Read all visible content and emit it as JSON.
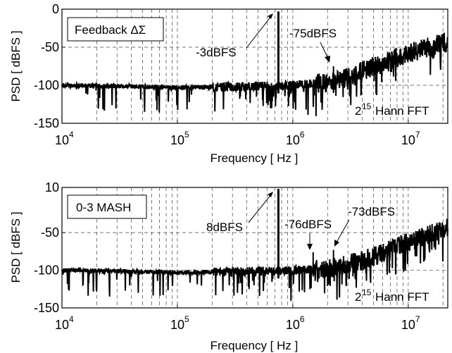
{
  "chart_data": [
    {
      "type": "line",
      "panel": "top",
      "legend": "Feedback ΔΣ",
      "xlabel": "Frequency  [ Hz ]",
      "ylabel": "PSD  [ dBFS ]",
      "x_scale": "log",
      "xlim": [
        10000,
        22000000
      ],
      "ylim": [
        -150,
        0
      ],
      "grid": true,
      "legend_position": "top-left",
      "yticks": [
        0,
        -50,
        -100,
        -150
      ],
      "ytick_labels": [
        "0",
        "-50",
        "-100",
        "-150"
      ],
      "xticks": [
        10000,
        100000,
        1000000,
        10000000
      ],
      "xtick_bases": [
        "10",
        "10",
        "10",
        "10"
      ],
      "xtick_exps": [
        "4",
        "5",
        "6",
        "7"
      ],
      "fft_base": "2",
      "fft_exp": "15",
      "fft_text": "Hann FFT",
      "noise": {
        "x": [
          10000,
          30000,
          100000,
          300000,
          700000,
          1000000,
          2000000,
          3000000,
          5000000,
          10000000,
          22000000
        ],
        "y": [
          -100,
          -101,
          -103,
          -102,
          -101,
          -100,
          -97,
          -90,
          -75,
          -58,
          -42
        ]
      },
      "tones": [
        {
          "x": 750000,
          "y": -3,
          "label": "-3dBFS"
        },
        {
          "x": 2250000,
          "y": -75,
          "label": "-75dBFS"
        }
      ]
    },
    {
      "type": "line",
      "panel": "bottom",
      "legend": "0-3 MASH",
      "xlabel": "Frequency  [ Hz ]",
      "ylabel": "PSD  [ dBFS ]",
      "x_scale": "log",
      "xlim": [
        10000,
        22000000
      ],
      "ylim": [
        -150,
        10
      ],
      "grid": true,
      "legend_position": "top-left",
      "yticks": [
        10,
        -50,
        -100,
        -150
      ],
      "ytick_labels": [
        "10",
        "-50",
        "-100",
        "-150"
      ],
      "xticks": [
        10000,
        100000,
        1000000,
        10000000
      ],
      "xtick_bases": [
        "10",
        "10",
        "10",
        "10"
      ],
      "xtick_exps": [
        "4",
        "5",
        "6",
        "7"
      ],
      "fft_base": "2",
      "fft_exp": "15",
      "fft_text": "Hann FFT",
      "noise": {
        "x": [
          10000,
          30000,
          100000,
          300000,
          700000,
          1000000,
          2000000,
          3000000,
          5000000,
          10000000,
          22000000
        ],
        "y": [
          -100,
          -101,
          -103,
          -102,
          -101,
          -100,
          -97,
          -92,
          -82,
          -62,
          -44
        ]
      },
      "tones": [
        {
          "x": 750000,
          "y": 8,
          "label": "8dBFS"
        },
        {
          "x": 1500000,
          "y": -76,
          "label": "-76dBFS"
        },
        {
          "x": 2250000,
          "y": -73,
          "label": "-73dBFS"
        }
      ]
    }
  ]
}
